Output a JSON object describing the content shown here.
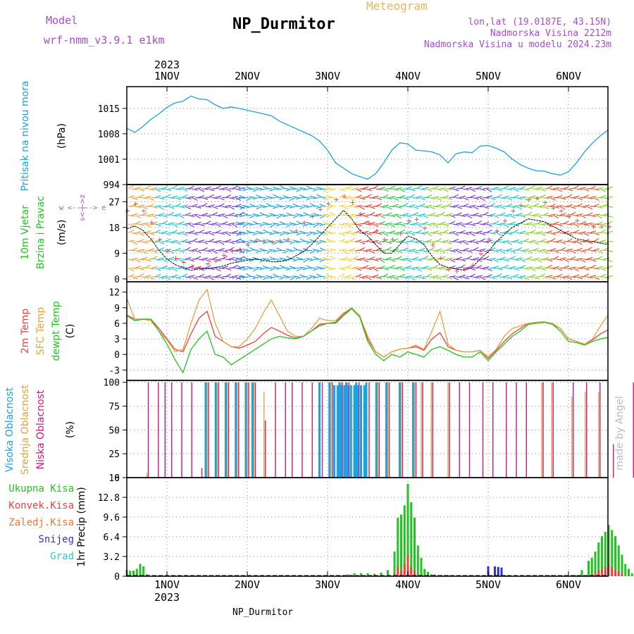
{
  "header": {
    "title": "NP_Durmitor",
    "meteogram_label": "Meteogram",
    "model_label": "Model",
    "model_name": "wrf-nmm_v3.9.1 e1km",
    "coords": "lon,lat (19.0187E, 43.15N)",
    "elevation": "Nadmorska Visina 2212m",
    "model_elevation": "Nadmorska Visina u modelu 2024.23m",
    "footer": "NP_Durmitor",
    "credit": "made by Angel"
  },
  "colors": {
    "purple": "#a64ccf",
    "orange": "#e8b65a",
    "blue": "#1aa3e0",
    "green": "#22c422",
    "red": "#f04040",
    "sfc": "#e2a33c",
    "pink": "#c61a80",
    "darkblue": "#3333cc",
    "cyan": "#30c8c8"
  },
  "chart_data": [
    {
      "type": "line",
      "panel": "pressure",
      "ylabel": "Pritisak na nivou mora",
      "unit": "(hPa)",
      "ylim": [
        994,
        1021
      ],
      "yticks": [
        994,
        1001,
        1008,
        1015
      ],
      "x_tick_labels_top": [
        "1NOV",
        "2NOV",
        "3NOV",
        "4NOV",
        "5NOV",
        "6NOV"
      ],
      "x_year": "2023",
      "x": [
        0.0,
        0.1,
        0.2,
        0.3,
        0.4,
        0.5,
        0.6,
        0.7,
        0.8,
        0.9,
        1.0,
        1.1,
        1.2,
        1.3,
        1.4,
        1.5,
        1.6,
        1.7,
        1.8,
        1.9,
        2.0,
        2.1,
        2.2,
        2.3,
        2.4,
        2.5,
        2.6,
        2.7,
        2.8,
        2.9,
        3.0,
        3.1,
        3.2,
        3.3,
        3.4,
        3.5,
        3.6,
        3.7,
        3.8,
        3.9,
        4.0,
        4.1,
        4.2,
        4.3,
        4.4,
        4.5,
        4.6,
        4.7,
        4.8,
        4.9,
        5.0,
        5.1,
        5.2,
        5.3,
        5.4,
        5.5,
        5.6,
        5.7,
        5.8,
        5.9,
        6.0
      ],
      "series": [
        {
          "values": [
            1009.5,
            1008.4,
            1010,
            1012,
            1013.5,
            1015.3,
            1016.5,
            1017,
            1018.4,
            1017.6,
            1017.4,
            1016,
            1015,
            1015.4,
            1015,
            1014.5,
            1014,
            1013.5,
            1013,
            1011.5,
            1010.5,
            1009.5,
            1008.5,
            1007.5,
            1006,
            1003.5,
            1000,
            998.5,
            997,
            996.2,
            995.5,
            997,
            1000,
            1003.5,
            1005.5,
            1005.2,
            1003.5,
            1003.3,
            1003,
            1002.2,
            1000,
            1002.5,
            1003,
            1002.8,
            1004.6,
            1004.8,
            1004,
            1003,
            1001,
            999.5,
            998.5,
            997.8,
            997.7,
            997,
            996.6,
            997.5,
            1000,
            1003,
            1005.5,
            1007.5,
            1009.2
          ]
        }
      ]
    },
    {
      "type": "line",
      "panel": "wind",
      "ylabel": "10m Vjetar Brzina i Pravac",
      "unit": "(m/s)",
      "legend_compass": "w <--|--> e",
      "legend_compass_vert": "s<-|->z",
      "ylim": [
        -1,
        33
      ],
      "yticks": [
        0,
        9,
        18,
        27
      ],
      "x": [
        0.0,
        0.1,
        0.2,
        0.3,
        0.4,
        0.5,
        0.6,
        0.7,
        0.8,
        0.9,
        1.0,
        1.1,
        1.2,
        1.3,
        1.4,
        1.5,
        1.6,
        1.7,
        1.8,
        1.9,
        2.0,
        2.1,
        2.2,
        2.3,
        2.4,
        2.5,
        2.6,
        2.7,
        2.8,
        2.9,
        3.0,
        3.1,
        3.2,
        3.3,
        3.4,
        3.5,
        3.6,
        3.7,
        3.8,
        3.9,
        4.0,
        4.1,
        4.2,
        4.3,
        4.4,
        4.5,
        4.6,
        4.7,
        4.8,
        4.9,
        5.0,
        5.1,
        5.2,
        5.3,
        5.4,
        5.5,
        5.6,
        5.7,
        5.8,
        5.9,
        6.0
      ],
      "series": [
        {
          "values": [
            17.5,
            18.5,
            17,
            14,
            10,
            7,
            5,
            4,
            3,
            3.5,
            3.5,
            4,
            4.5,
            5.5,
            6,
            6.5,
            7,
            6.5,
            6,
            6,
            6.5,
            8,
            9.5,
            12,
            15,
            18,
            21,
            24,
            21,
            17,
            15,
            12,
            9,
            9,
            12,
            15,
            14,
            12,
            8,
            5,
            4,
            3.5,
            3,
            4,
            7,
            9.5,
            13,
            15.5,
            18,
            19.5,
            21,
            20.5,
            20,
            18.5,
            17,
            15.5,
            14,
            13.5,
            13,
            12.5,
            12
          ]
        },
        {
          "values": [
            24,
            26.5,
            24,
            20,
            14,
            10,
            7.5,
            6,
            4.5,
            4,
            5.5,
            6.5,
            8.5,
            10,
            10.5,
            12,
            13.5,
            13.5,
            13,
            13.5,
            14,
            17,
            20,
            22,
            24.5,
            26.5,
            28,
            29,
            27,
            23,
            20,
            17,
            14,
            14,
            16,
            20.5,
            21,
            18,
            12,
            7.5,
            3.5,
            3,
            3.5,
            5,
            9,
            14,
            17,
            20.5,
            24,
            26,
            28,
            28.5,
            27,
            25,
            24,
            22,
            20.5,
            19.5,
            18.5,
            18.5,
            18.5
          ]
        }
      ]
    },
    {
      "type": "line",
      "panel": "temperature",
      "ylabels": [
        "2m Temp",
        "SFC Temp",
        "dewpt Temp"
      ],
      "unit": "(C)",
      "ylim": [
        -5,
        14
      ],
      "yticks": [
        -3,
        0,
        3,
        6,
        9,
        12
      ],
      "x": [
        0.0,
        0.1,
        0.2,
        0.3,
        0.4,
        0.5,
        0.6,
        0.7,
        0.8,
        0.9,
        1.0,
        1.1,
        1.2,
        1.3,
        1.4,
        1.5,
        1.6,
        1.7,
        1.8,
        1.9,
        2.0,
        2.1,
        2.2,
        2.3,
        2.4,
        2.5,
        2.6,
        2.7,
        2.8,
        2.9,
        3.0,
        3.1,
        3.2,
        3.3,
        3.4,
        3.5,
        3.6,
        3.7,
        3.8,
        3.9,
        4.0,
        4.1,
        4.2,
        4.3,
        4.4,
        4.5,
        4.6,
        4.7,
        4.8,
        4.9,
        5.0,
        5.1,
        5.2,
        5.3,
        5.4,
        5.5,
        5.6,
        5.7,
        5.8,
        5.9,
        6.0
      ],
      "series": [
        {
          "name": "2m Temp",
          "values": [
            7.6,
            6.8,
            6.8,
            6.8,
            5,
            3,
            1,
            0.5,
            4,
            7,
            8.3,
            3.5,
            2.5,
            1.5,
            1.2,
            1.8,
            2.5,
            4,
            5.2,
            4.5,
            3.7,
            3.2,
            3.5,
            4.5,
            5.8,
            6,
            6.2,
            7.8,
            8.8,
            7.5,
            3,
            0.5,
            -0.5,
            0.5,
            1,
            1.2,
            1.5,
            0.8,
            3,
            4.2,
            1.5,
            0.8,
            0.5,
            0.5,
            0.8,
            -0.8,
            0.8,
            2.5,
            4,
            5,
            6,
            6.2,
            6.3,
            5.8,
            5,
            3,
            2.5,
            2,
            2.8,
            4,
            4.8
          ]
        },
        {
          "name": "SFC Temp",
          "values": [
            10.8,
            6.8,
            6.8,
            6.5,
            4.5,
            2.8,
            0.5,
            1,
            6,
            10.5,
            12.5,
            6,
            2.5,
            1.5,
            1.5,
            3,
            5,
            8,
            10.5,
            7.5,
            4.5,
            3.5,
            3.5,
            5,
            7,
            6.5,
            6.5,
            8,
            9,
            7.5,
            3.5,
            0.5,
            -0.5,
            0.5,
            1,
            1.2,
            1.8,
            1,
            4.5,
            8.3,
            2,
            0.8,
            0.5,
            0.5,
            0.8,
            -0.5,
            1,
            3.5,
            5,
            5.5,
            6,
            6.2,
            6.3,
            6,
            5,
            3,
            2.5,
            2,
            3,
            5.5,
            7.8
          ]
        },
        {
          "name": "dewpt Temp",
          "values": [
            7.5,
            6.5,
            6.8,
            6.8,
            4.5,
            2,
            -1,
            -3.5,
            1,
            3,
            4.5,
            0,
            -0.5,
            -2,
            -1,
            0,
            1,
            2,
            3,
            3.5,
            3.2,
            3,
            3.5,
            4.5,
            5.5,
            6,
            6,
            7.5,
            8.8,
            7.2,
            2.5,
            0,
            -1.2,
            0,
            -0.5,
            0.5,
            0,
            -0.5,
            1,
            1.5,
            0.8,
            0,
            -0.5,
            -0.5,
            0.5,
            -1.2,
            0.5,
            2,
            3.5,
            4.5,
            5.8,
            6,
            6.2,
            5.8,
            4.5,
            2.5,
            2.3,
            1.8,
            2.5,
            3,
            3.3
          ]
        }
      ]
    },
    {
      "type": "bar",
      "panel": "cloud",
      "ylabels": [
        "Visoka Oblacnost",
        "Srednja Oblacnost",
        "Niska Oblacnost"
      ],
      "unit": "(%)",
      "ylim": [
        0,
        102
      ],
      "yticks": [
        0,
        25,
        50,
        75,
        100
      ],
      "x_hours": [
        6,
        9,
        11,
        13,
        16,
        19,
        22,
        24,
        27,
        30,
        33,
        36,
        38,
        41,
        44,
        47,
        49,
        52,
        55,
        58,
        61,
        64,
        66,
        69,
        72,
        75,
        78,
        82,
        86,
        88,
        91,
        96,
        99,
        102,
        106,
        109,
        113,
        116,
        119,
        124,
        127,
        133,
        137,
        141,
        145,
        151,
        157
      ],
      "series": [
        {
          "name": "Niska Oblacnost",
          "values": [
            100,
            100,
            100,
            100,
            100,
            100,
            10,
            100,
            100,
            100,
            100,
            100,
            100,
            60,
            100,
            100,
            100,
            100,
            100,
            100,
            100,
            100,
            100,
            100,
            100,
            100,
            100,
            100,
            100,
            100,
            100,
            100,
            100,
            100,
            100,
            100,
            100,
            100,
            100,
            100,
            100,
            100,
            100,
            100,
            35,
            100,
            10
          ]
        },
        {
          "name": "Srednja Oblacnost",
          "values": [
            5,
            0,
            0,
            0,
            0,
            0,
            0,
            100,
            100,
            100,
            100,
            100,
            100,
            90,
            0,
            0,
            0,
            0,
            0,
            0,
            100,
            100,
            100,
            0,
            0,
            100,
            100,
            100,
            100,
            100,
            100,
            100,
            0,
            0,
            0,
            0,
            0,
            0,
            0,
            100,
            100,
            85,
            90,
            90,
            0,
            0,
            0
          ]
        },
        {
          "name": "Visoka Oblacnost",
          "values": [
            0,
            0,
            0,
            0,
            0,
            0,
            0,
            100,
            100,
            100,
            100,
            100,
            100,
            0,
            0,
            0,
            0,
            0,
            0,
            100,
            100,
            100,
            100,
            100,
            100,
            100,
            100,
            100,
            100,
            0,
            0,
            0,
            0,
            0,
            0,
            0,
            0,
            0,
            0,
            0,
            0,
            0,
            0,
            0,
            0,
            0,
            0
          ]
        }
      ]
    },
    {
      "type": "bar",
      "panel": "precip",
      "ylabel": "1hr Precip (mm)",
      "legend": [
        "Ukupna Kisa",
        "Konvek.Kisa",
        "Zaledj.Kisa",
        "Snijeg",
        "Grad"
      ],
      "ylim": [
        0,
        16
      ],
      "yticks": [
        0,
        3.2,
        6.4,
        9.6,
        12.8,
        16
      ],
      "x_tick_labels_bottom": [
        "1NOV",
        "2NOV",
        "3NOV",
        "4NOV",
        "5NOV",
        "6NOV"
      ],
      "x_year": "2023",
      "x_hours": [
        0,
        1,
        2,
        3,
        4,
        5,
        6,
        66,
        68,
        70,
        72,
        74,
        76,
        78,
        80,
        81,
        82,
        83,
        84,
        85,
        86,
        87,
        88,
        89,
        90,
        91,
        92,
        94,
        96,
        108,
        110,
        111,
        112,
        113,
        127,
        134,
        136,
        138,
        139,
        140,
        141,
        142,
        143,
        144,
        145,
        146,
        147,
        148,
        149,
        150,
        151,
        152,
        154
      ],
      "series": [
        {
          "name": "Ukupna Kisa",
          "values": [
            1,
            0.9,
            0.9,
            1.2,
            2,
            1.6,
            0.3,
            0.3,
            0.5,
            0.5,
            0.5,
            0.4,
            0.6,
            1,
            4,
            9.5,
            10,
            11.5,
            15,
            12,
            9.5,
            5,
            3,
            1.2,
            0.7,
            0.3,
            0.3,
            0.2,
            0.2,
            1.6,
            1.6,
            1.5,
            1.4,
            0.2,
            0.2,
            0.2,
            1,
            2.5,
            3,
            4,
            5.5,
            6.5,
            7.2,
            8.3,
            7.5,
            6.5,
            5,
            3.5,
            2,
            1.2,
            0.5,
            0.3,
            0.2
          ]
        },
        {
          "name": "Konvek.Kisa",
          "values": [
            0,
            0,
            0,
            0,
            0,
            0,
            0,
            0,
            0,
            0,
            0,
            0,
            0,
            0,
            0.5,
            1.5,
            1,
            2,
            3.5,
            1.5,
            1,
            0.3,
            0,
            0,
            0,
            0,
            0,
            0,
            0,
            0,
            0,
            0,
            0,
            0,
            0,
            0,
            0,
            0,
            0.3,
            0.5,
            1,
            1.2,
            1.5,
            2,
            1.5,
            1,
            0.8,
            0.5,
            0,
            0,
            0,
            0,
            0
          ]
        },
        {
          "name": "Snijeg",
          "values": [
            0,
            0,
            0,
            0,
            0,
            0,
            0,
            0,
            0,
            0,
            0,
            0,
            0,
            0,
            0,
            0,
            0,
            0,
            0,
            0,
            0,
            0,
            0,
            0,
            0,
            0,
            0,
            0,
            0,
            1.6,
            1.6,
            1.5,
            1.4,
            0,
            0,
            0,
            0,
            0,
            0,
            0,
            0,
            0,
            0,
            0,
            0,
            0,
            0,
            0,
            0,
            0,
            0,
            0,
            0
          ]
        }
      ]
    }
  ]
}
